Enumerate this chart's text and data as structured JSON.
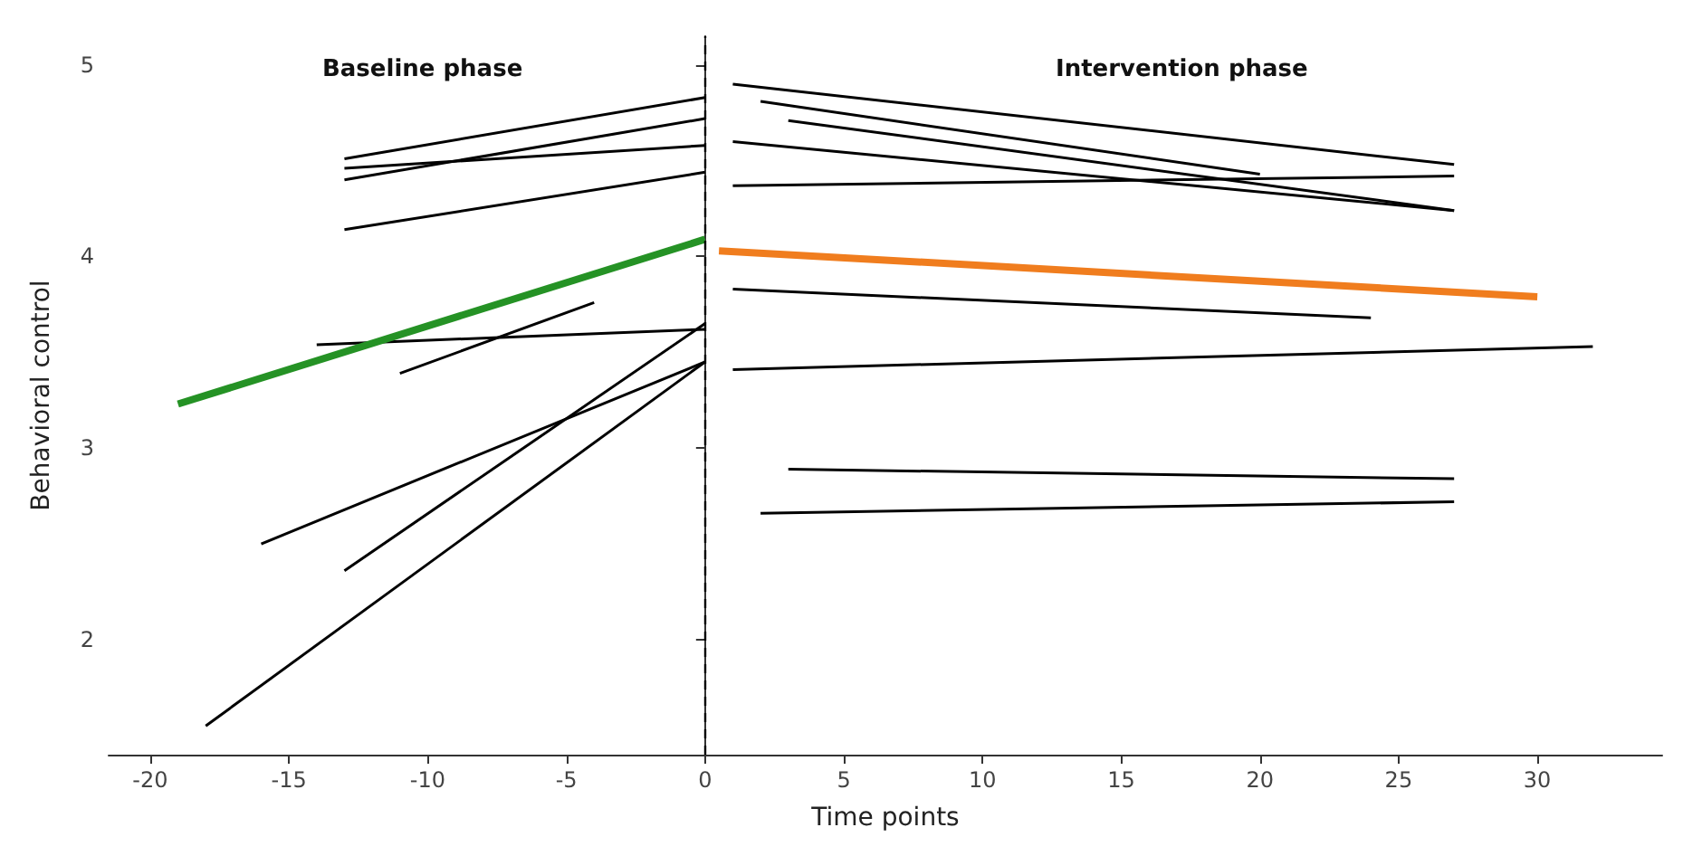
{
  "chart_data": {
    "type": "line",
    "xlabel": "Time points",
    "ylabel": "Behavioral control",
    "xlim": [
      -21.5,
      34.5
    ],
    "xticks": [
      -20,
      -15,
      -10,
      -5,
      0,
      5,
      10,
      15,
      20,
      25,
      30
    ],
    "ylim": [
      1.4,
      5.15
    ],
    "yticks": [
      2,
      3,
      4,
      5
    ],
    "grid": false,
    "marker": "none",
    "line_style": "solid",
    "ref_lines": [
      {
        "axis": "x",
        "value": 0,
        "line_style": "dashed",
        "color": "#000000"
      }
    ],
    "annotations": [
      "Baseline phase",
      "Intervention phase"
    ],
    "series": [
      {
        "color": "#000000",
        "x": [
          -13,
          0
        ],
        "values": [
          4.51,
          4.83
        ]
      },
      {
        "color": "#000000",
        "x": [
          -13,
          0
        ],
        "values": [
          4.46,
          4.58
        ]
      },
      {
        "color": "#000000",
        "x": [
          -13,
          0
        ],
        "values": [
          4.4,
          4.72
        ]
      },
      {
        "color": "#000000",
        "x": [
          -13,
          0
        ],
        "values": [
          4.14,
          4.44
        ]
      },
      {
        "color": "#000000",
        "x": [
          -14,
          0
        ],
        "values": [
          3.54,
          3.62
        ]
      },
      {
        "color": "#000000",
        "x": [
          -11,
          -4
        ],
        "values": [
          3.39,
          3.76
        ]
      },
      {
        "color": "#000000",
        "x": [
          -16,
          0
        ],
        "values": [
          2.5,
          3.45
        ]
      },
      {
        "color": "#000000",
        "x": [
          -13,
          0
        ],
        "values": [
          2.36,
          3.65
        ]
      },
      {
        "color": "#000000",
        "x": [
          -18,
          0
        ],
        "values": [
          1.55,
          3.45
        ]
      },
      {
        "color": "#259225",
        "x": [
          -19,
          0
        ],
        "values": [
          3.23,
          4.09
        ]
      },
      {
        "color": "#000000",
        "x": [
          1,
          27
        ],
        "values": [
          4.9,
          4.48
        ]
      },
      {
        "color": "#000000",
        "x": [
          2,
          20
        ],
        "values": [
          4.81,
          4.43
        ]
      },
      {
        "color": "#000000",
        "x": [
          3,
          27
        ],
        "values": [
          4.71,
          4.24
        ]
      },
      {
        "color": "#000000",
        "x": [
          1,
          27
        ],
        "values": [
          4.6,
          4.24
        ]
      },
      {
        "color": "#000000",
        "x": [
          1,
          27
        ],
        "values": [
          4.37,
          4.42
        ]
      },
      {
        "color": "#f07d1e",
        "x": [
          0.5,
          30
        ],
        "values": [
          4.03,
          3.79
        ]
      },
      {
        "color": "#000000",
        "x": [
          1,
          24
        ],
        "values": [
          3.83,
          3.68
        ]
      },
      {
        "color": "#000000",
        "x": [
          1,
          32
        ],
        "values": [
          3.41,
          3.53
        ]
      },
      {
        "color": "#000000",
        "x": [
          3,
          27
        ],
        "values": [
          2.89,
          2.84
        ]
      },
      {
        "color": "#000000",
        "x": [
          2,
          27
        ],
        "values": [
          2.66,
          2.72
        ]
      }
    ]
  }
}
